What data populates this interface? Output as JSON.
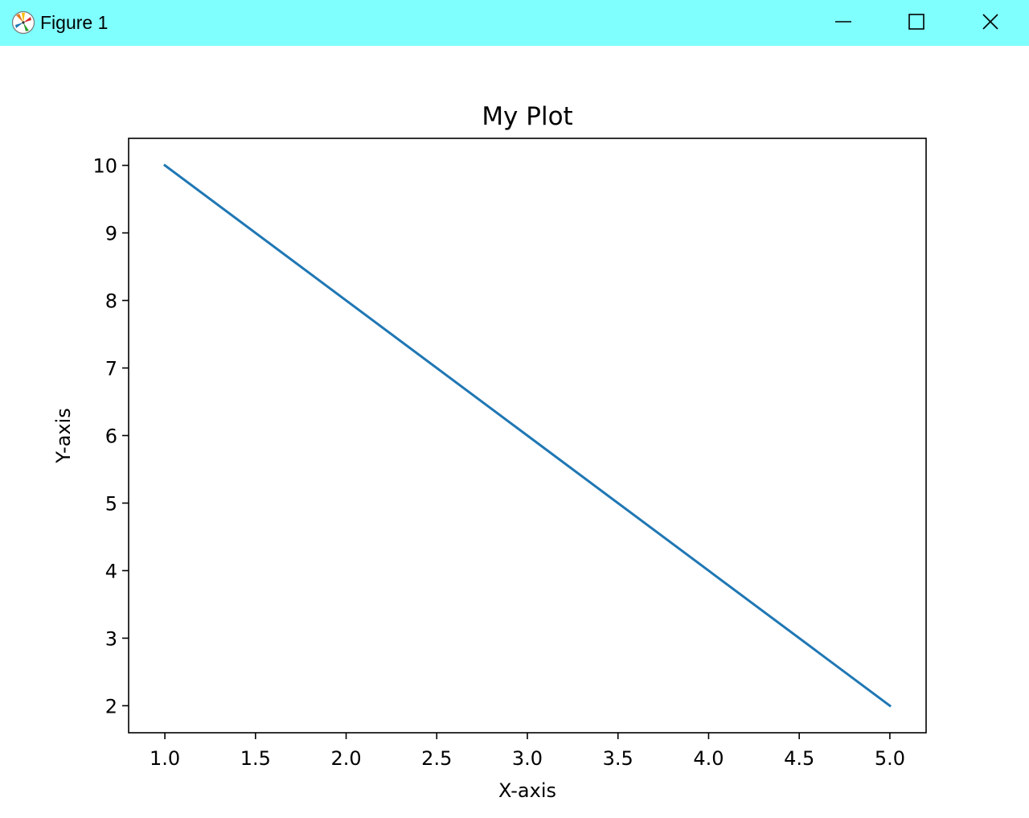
{
  "window": {
    "title": "Figure 1",
    "app_icon": "matplotlib-logo-icon",
    "controls": {
      "minimize_icon": "minimize-icon",
      "maximize_icon": "maximize-icon",
      "close_icon": "close-icon"
    },
    "titlebar_color": "#80ffff"
  },
  "chart_data": {
    "type": "line",
    "title": "My Plot",
    "xlabel": "X-axis",
    "ylabel": "Y-axis",
    "x": [
      1,
      2,
      3,
      4,
      5
    ],
    "series": [
      {
        "name": "line",
        "values": [
          10,
          8,
          6,
          4,
          2
        ],
        "color": "#1f77b4"
      }
    ],
    "xlim": [
      0.8,
      5.2
    ],
    "ylim": [
      1.6,
      10.4
    ],
    "xticks": [
      1.0,
      1.5,
      2.0,
      2.5,
      3.0,
      3.5,
      4.0,
      4.5,
      5.0
    ],
    "xtick_labels": [
      "1.0",
      "1.5",
      "2.0",
      "2.5",
      "3.0",
      "3.5",
      "4.0",
      "4.5",
      "5.0"
    ],
    "yticks": [
      2,
      3,
      4,
      5,
      6,
      7,
      8,
      9,
      10
    ],
    "ytick_labels": [
      "2",
      "3",
      "4",
      "5",
      "6",
      "7",
      "8",
      "9",
      "10"
    ],
    "grid": false,
    "legend": "none"
  }
}
